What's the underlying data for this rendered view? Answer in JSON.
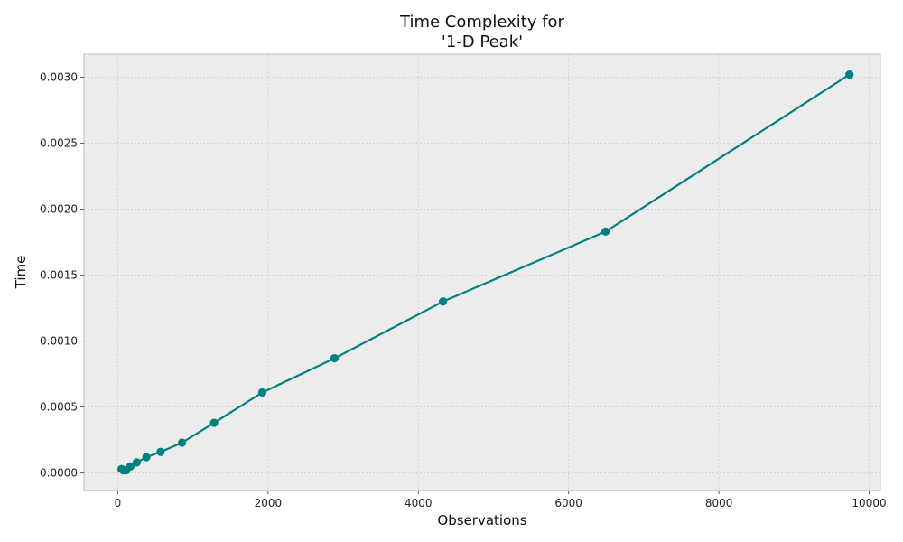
{
  "chart_data": {
    "type": "line",
    "title_lines": [
      "Time Complexity for",
      "'1-D Peak'"
    ],
    "xlabel": "Observations",
    "ylabel": "Time",
    "xlim": [
      -450,
      10150
    ],
    "ylim": [
      -0.000133,
      0.003175
    ],
    "x_ticks": [
      0,
      2000,
      4000,
      6000,
      8000,
      10000
    ],
    "x_tick_labels": [
      "0",
      "2000",
      "4000",
      "6000",
      "8000",
      "10000"
    ],
    "y_ticks": [
      0.0,
      0.0005,
      0.001,
      0.0015,
      0.002,
      0.0025,
      0.003
    ],
    "y_tick_labels": [
      "0.0000",
      "0.0005",
      "0.0010",
      "0.0015",
      "0.0020",
      "0.0025",
      "0.0030"
    ],
    "grid": true,
    "colors": {
      "series": "#008080",
      "plot_background": "#ececec",
      "grid": "#cfcfcf",
      "spine": "#bcbcbc"
    },
    "series": [
      {
        "x": [
          50,
          75,
          112,
          169,
          253,
          380,
          570,
          855,
          1282,
          1923,
          2885,
          4328,
          6492,
          9738
        ],
        "y": [
          3e-05,
          2e-05,
          2e-05,
          5e-05,
          8e-05,
          0.00012,
          0.00016,
          0.00023,
          0.00038,
          0.00061,
          0.00087,
          0.0013,
          0.00183,
          0.00302
        ]
      }
    ]
  }
}
